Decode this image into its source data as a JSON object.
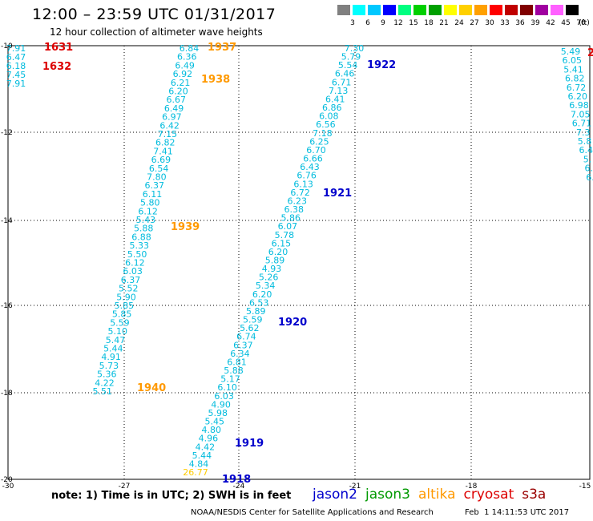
{
  "title": "12:00 – 23:59 UTC 01/31/2017",
  "subtitle": "12 hour collection of altimeter wave heights",
  "colorbar": {
    "unit_label": "(ft)",
    "bins": [
      {
        "label": "3",
        "color": "#808080"
      },
      {
        "label": "6",
        "color": "#00ffff"
      },
      {
        "label": "9",
        "color": "#00c8ff"
      },
      {
        "label": "12",
        "color": "#0000ff"
      },
      {
        "label": "15",
        "color": "#00ff80"
      },
      {
        "label": "18",
        "color": "#00d000"
      },
      {
        "label": "21",
        "color": "#00a000"
      },
      {
        "label": "24",
        "color": "#ffff00"
      },
      {
        "label": "27",
        "color": "#ffd000"
      },
      {
        "label": "30",
        "color": "#ffa000"
      },
      {
        "label": "33",
        "color": "#ff0000"
      },
      {
        "label": "36",
        "color": "#c00000"
      },
      {
        "label": "39",
        "color": "#800000"
      },
      {
        "label": "42",
        "color": "#a000a0"
      },
      {
        "label": "45",
        "color": "#ff60ff"
      },
      {
        "label": "70",
        "color": "#000000"
      }
    ]
  },
  "map": {
    "lat_labels": [
      "-10",
      "-12",
      "-14",
      "-16",
      "-18",
      "-20"
    ],
    "lon_labels": [
      "-30",
      "-27",
      "-24",
      "-21",
      "-18",
      "-15"
    ]
  },
  "satellites": [
    {
      "name": "jason2",
      "color": "#0000cc"
    },
    {
      "name": "jason3",
      "color": "#009900"
    },
    {
      "name": "altika",
      "color": "#ff9900"
    },
    {
      "name": "cryosat",
      "color": "#dd0000"
    },
    {
      "name": "s3a",
      "color": "#990000"
    }
  ],
  "pass_labels": [
    {
      "text": "1631",
      "color": "#dd0000"
    },
    {
      "text": "1632",
      "color": "#dd0000"
    },
    {
      "text": "1937",
      "color": "#ff9900"
    },
    {
      "text": "1938",
      "color": "#ff9900"
    },
    {
      "text": "1939",
      "color": "#ff9900"
    },
    {
      "text": "1940",
      "color": "#ff9900"
    },
    {
      "text": "1922",
      "color": "#0000cc"
    },
    {
      "text": "1921",
      "color": "#0000cc"
    },
    {
      "text": "1920",
      "color": "#0000cc"
    },
    {
      "text": "1919",
      "color": "#0000cc"
    },
    {
      "text": "1918",
      "color": "#0000cc"
    },
    {
      "text": "2",
      "color": "#dd0000"
    }
  ],
  "tracks": [
    {
      "id": "far-left",
      "color": "#00bbdd",
      "values": [
        "7.91",
        "6.47",
        "6.18",
        "7.45",
        "7.91"
      ]
    },
    {
      "id": "altika-track",
      "color": "#00bbdd",
      "values": [
        "6.84",
        "6.36",
        "6.49",
        "6.92",
        "6.21",
        "6.20",
        "6.67",
        "6.49",
        "6.97",
        "6.42",
        "7.15",
        "6.82",
        "7.41",
        "6.69",
        "6.54",
        "7.80",
        "6.37",
        "6.11",
        "5.80",
        "6.12",
        "5.43",
        "5.88",
        "6.88",
        "5.33",
        "5.50",
        "6.12",
        "6.03",
        "6.37",
        "5.52",
        "5.90",
        "5.85",
        "5.85",
        "5.59",
        "5.10",
        "5.47",
        "5.44",
        "4.91",
        "5.73",
        "5.36",
        "4.22",
        "5.51"
      ]
    },
    {
      "id": "jason2-track",
      "color": "#00bbdd",
      "values": [
        "7.30",
        "5.79",
        "5.54",
        "6.46",
        "6.71",
        "7.13",
        "6.41",
        "6.86",
        "6.08",
        "6.56",
        "7.18",
        "6.25",
        "6.70",
        "6.66",
        "6.43",
        "6.76",
        "6.13",
        "6.72",
        "6.23",
        "6.38",
        "5.86",
        "6.07",
        "5.78",
        "6.15",
        "6.20",
        "5.89",
        "4.93",
        "5.26",
        "5.34",
        "6.20",
        "6.53",
        "5.89",
        "5.59",
        "5.62",
        "6.74",
        "6.37",
        "6.34",
        "6.81",
        "5.88",
        "5.17",
        "6.10",
        "6.03",
        "4.90",
        "5.98",
        "5.45",
        "4.80",
        "4.96",
        "4.42",
        "5.44",
        "4.84",
        "26.77"
      ]
    },
    {
      "id": "right-edge",
      "color": "#00bbdd",
      "values": [
        "5.49",
        "6.05",
        "5.41",
        "6.82",
        "6.72",
        "6.20",
        "6.98",
        "7.05",
        "6.71",
        "7.3",
        "5.8",
        "6.4",
        "5.",
        "6.",
        "6."
      ]
    }
  ],
  "note": "note: 1) Time is in UTC; 2) SWH is in feet",
  "credit": "NOAA/NESDIS Center for Satellite Applications and Research",
  "timestamp": "Feb  1 14:11:53 UTC 2017"
}
